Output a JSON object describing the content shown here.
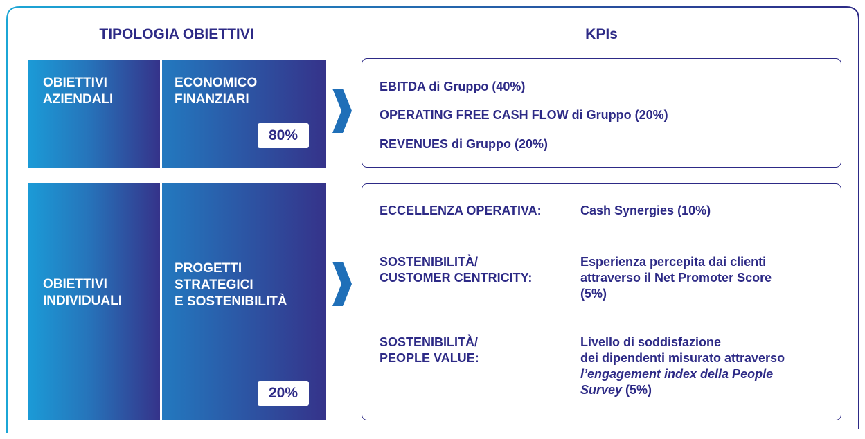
{
  "header": {
    "left_title": "TIPOLOGIA OBIETTIVI",
    "right_title": "KPIs"
  },
  "rows": [
    {
      "group": [
        "OBIETTIVI",
        "AZIENDALI"
      ],
      "type": [
        "ECONOMICO",
        "FINANZIARI"
      ],
      "weight": "80%",
      "kpis": [
        "EBITDA di Gruppo (40%)",
        "OPERATING FREE CASH FLOW di Gruppo (20%)",
        "REVENUES di Gruppo (20%)"
      ]
    },
    {
      "group": [
        "OBIETTIVI",
        "INDIVIDUALI"
      ],
      "type": [
        "PROGETTI",
        "STRATEGICI",
        "E SOSTENIBILITÀ"
      ],
      "weight": "20%",
      "kpis": [
        {
          "label": [
            "ECCELLENZA OPERATIVA:"
          ],
          "description": [
            [
              {
                "text": "Cash Synergies (10%)",
                "italic": false
              }
            ]
          ]
        },
        {
          "label": [
            "SOSTENIBILITÀ/",
            "CUSTOMER CENTRICITY:"
          ],
          "description": [
            [
              {
                "text": "Esperienza percepita dai clienti",
                "italic": false
              }
            ],
            [
              {
                "text": "attraverso il Net Promoter Score",
                "italic": false
              }
            ],
            [
              {
                "text": "(5%)",
                "italic": false
              }
            ]
          ]
        },
        {
          "label": [
            "SOSTENIBILITÀ/",
            "PEOPLE VALUE:"
          ],
          "description": [
            [
              {
                "text": "Livello di soddisfazione",
                "italic": false
              }
            ],
            [
              {
                "text": "dei dipendenti misurato attraverso",
                "italic": false
              }
            ],
            [
              {
                "text": "l’engagement index della People",
                "italic": true
              }
            ],
            [
              {
                "text": "Survey",
                "italic": true
              },
              {
                "text": " (5%)",
                "italic": false
              }
            ]
          ]
        }
      ]
    }
  ]
}
